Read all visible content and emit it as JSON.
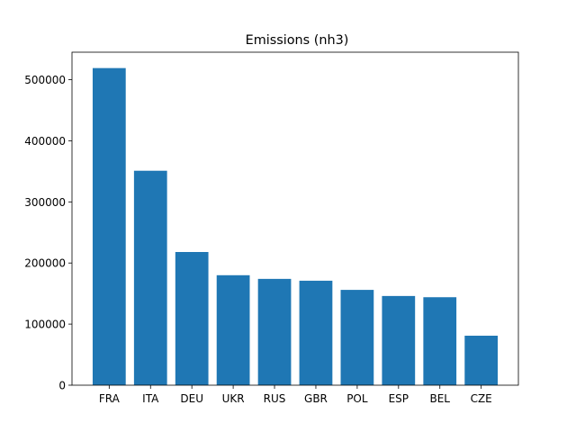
{
  "chart_data": {
    "type": "bar",
    "title": "Emissions (nh3)",
    "xlabel": "",
    "ylabel": "",
    "categories": [
      "FRA",
      "ITA",
      "DEU",
      "UKR",
      "RUS",
      "GBR",
      "POL",
      "ESP",
      "BEL",
      "CZE"
    ],
    "values": [
      519000,
      351000,
      218000,
      180000,
      174000,
      171000,
      156000,
      146000,
      144000,
      81000
    ],
    "ylim": [
      0,
      545000
    ],
    "yticks": [
      0,
      100000,
      200000,
      300000,
      400000,
      500000
    ],
    "ytick_labels": [
      "0",
      "100000",
      "200000",
      "300000",
      "400000",
      "500000"
    ],
    "grid": false,
    "bar_color": "#1f77b4"
  }
}
